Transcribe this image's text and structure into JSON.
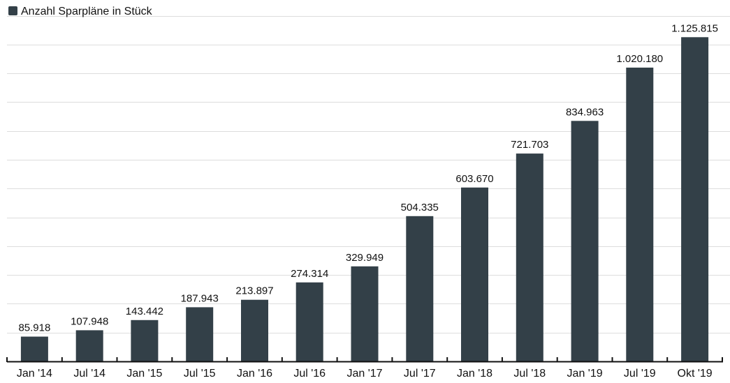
{
  "colors": {
    "bar": "#334048",
    "grid": "#dddddd",
    "axis": "#111111",
    "text": "#111111",
    "background": "#ffffff"
  },
  "chart_data": {
    "type": "bar",
    "title": "",
    "xlabel": "",
    "ylabel": "",
    "legend": {
      "position": "top-left",
      "entries": [
        "Anzahl Sparpläne in Stück"
      ]
    },
    "grid": true,
    "ylim": [
      0,
      1250000
    ],
    "categories": [
      "Jan '14",
      "Jul '14",
      "Jan '15",
      "Jul '15",
      "Jan '16",
      "Jul '16",
      "Jan '17",
      "Jul '17",
      "Jan '18",
      "Jul '18",
      "Jan '19",
      "Jul '19",
      "Okt '19"
    ],
    "series": [
      {
        "name": "Anzahl Sparpläne in Stück",
        "values": [
          85918,
          107948,
          143442,
          187943,
          213897,
          274314,
          329949,
          504335,
          603670,
          721703,
          834963,
          1020180,
          1125815
        ],
        "labels": [
          "85.918",
          "107.948",
          "143.442",
          "187.943",
          "213.897",
          "274.314",
          "329.949",
          "504.335",
          "603.670",
          "721.703",
          "834.963",
          "1.020.180",
          "1.125.815"
        ]
      }
    ]
  }
}
